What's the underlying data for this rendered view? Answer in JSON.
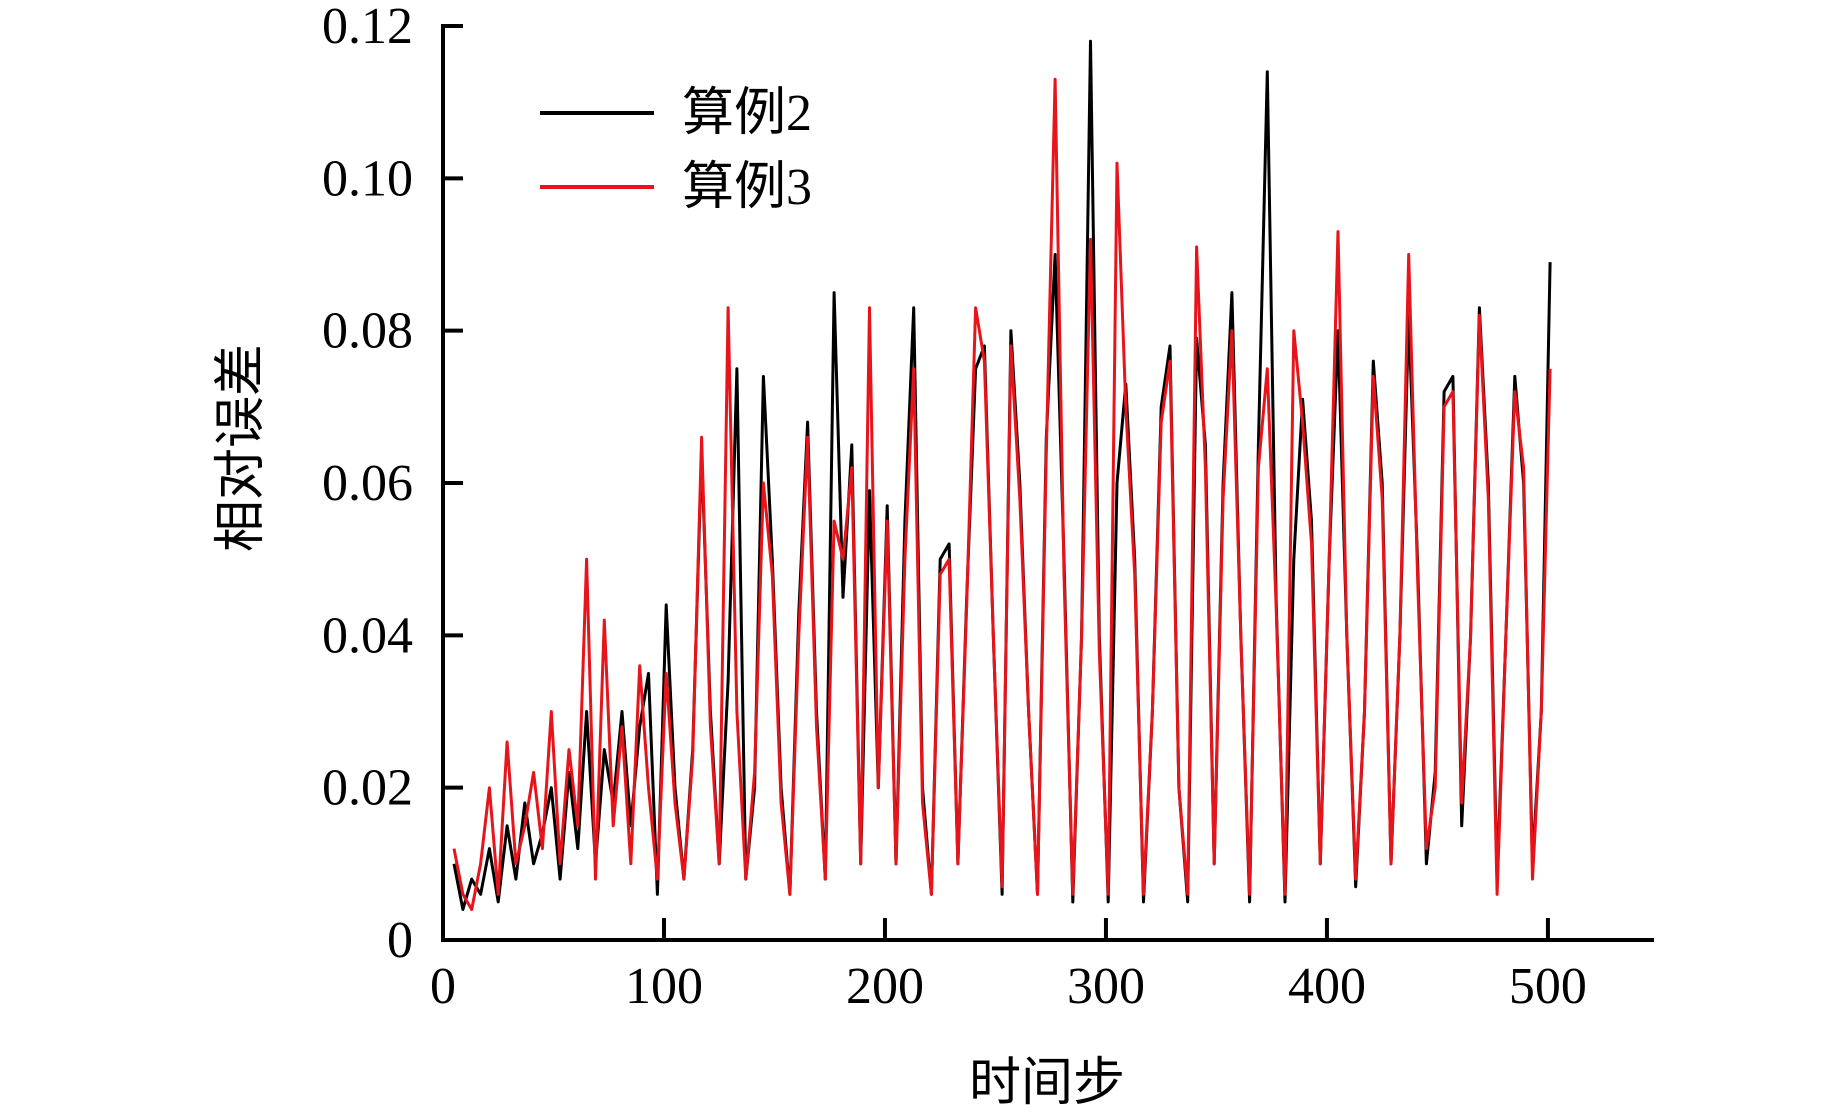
{
  "chart_data": {
    "type": "line",
    "title": "",
    "xlabel": "时间步",
    "ylabel": "相对误差",
    "xlim": [
      0,
      548
    ],
    "ylim": [
      0,
      0.12
    ],
    "xticks": [
      0,
      100,
      200,
      300,
      400,
      500
    ],
    "xtick_labels": [
      "0",
      "100",
      "200",
      "300",
      "400",
      "500"
    ],
    "yticks": [
      0,
      0.02,
      0.04,
      0.06,
      0.08,
      0.1,
      0.12
    ],
    "ytick_labels": [
      "0",
      "0.02",
      "0.04",
      "0.06",
      "0.08",
      "0.10",
      "0.12"
    ],
    "grid": false,
    "legend_position": "top-left",
    "x_start": 5,
    "x_step": 4,
    "series": [
      {
        "name": "算例2",
        "color": "#000000",
        "values": [
          0.01,
          0.004,
          0.008,
          0.006,
          0.012,
          0.005,
          0.015,
          0.008,
          0.018,
          0.01,
          0.014,
          0.02,
          0.008,
          0.022,
          0.012,
          0.03,
          0.01,
          0.025,
          0.018,
          0.03,
          0.015,
          0.028,
          0.035,
          0.006,
          0.044,
          0.02,
          0.008,
          0.025,
          0.064,
          0.03,
          0.01,
          0.034,
          0.075,
          0.008,
          0.02,
          0.074,
          0.05,
          0.02,
          0.006,
          0.043,
          0.068,
          0.03,
          0.008,
          0.085,
          0.045,
          0.065,
          0.01,
          0.059,
          0.02,
          0.057,
          0.01,
          0.055,
          0.083,
          0.02,
          0.006,
          0.05,
          0.052,
          0.01,
          0.045,
          0.075,
          0.078,
          0.04,
          0.006,
          0.08,
          0.06,
          0.03,
          0.006,
          0.066,
          0.09,
          0.05,
          0.005,
          0.04,
          0.118,
          0.04,
          0.005,
          0.06,
          0.073,
          0.05,
          0.005,
          0.03,
          0.07,
          0.078,
          0.02,
          0.005,
          0.079,
          0.065,
          0.01,
          0.06,
          0.085,
          0.04,
          0.005,
          0.065,
          0.114,
          0.045,
          0.005,
          0.05,
          0.071,
          0.055,
          0.01,
          0.05,
          0.08,
          0.04,
          0.007,
          0.03,
          0.076,
          0.06,
          0.01,
          0.04,
          0.082,
          0.05,
          0.01,
          0.022,
          0.072,
          0.074,
          0.015,
          0.04,
          0.083,
          0.06,
          0.008,
          0.04,
          0.074,
          0.06,
          0.01,
          0.03,
          0.089
        ]
      },
      {
        "name": "算例3",
        "color": "#e8141b",
        "values": [
          0.012,
          0.006,
          0.004,
          0.01,
          0.02,
          0.006,
          0.026,
          0.01,
          0.015,
          0.022,
          0.012,
          0.03,
          0.01,
          0.025,
          0.015,
          0.05,
          0.008,
          0.042,
          0.015,
          0.028,
          0.01,
          0.036,
          0.02,
          0.008,
          0.035,
          0.018,
          0.008,
          0.024,
          0.066,
          0.028,
          0.01,
          0.083,
          0.03,
          0.008,
          0.022,
          0.06,
          0.048,
          0.018,
          0.006,
          0.04,
          0.066,
          0.028,
          0.008,
          0.055,
          0.05,
          0.062,
          0.01,
          0.083,
          0.02,
          0.055,
          0.01,
          0.05,
          0.075,
          0.018,
          0.006,
          0.048,
          0.05,
          0.01,
          0.044,
          0.083,
          0.076,
          0.04,
          0.007,
          0.078,
          0.058,
          0.03,
          0.006,
          0.064,
          0.113,
          0.048,
          0.006,
          0.04,
          0.092,
          0.038,
          0.006,
          0.102,
          0.07,
          0.048,
          0.006,
          0.03,
          0.068,
          0.076,
          0.02,
          0.006,
          0.091,
          0.062,
          0.01,
          0.058,
          0.08,
          0.04,
          0.006,
          0.062,
          0.075,
          0.044,
          0.006,
          0.08,
          0.068,
          0.052,
          0.01,
          0.05,
          0.093,
          0.04,
          0.008,
          0.03,
          0.074,
          0.058,
          0.01,
          0.04,
          0.09,
          0.048,
          0.012,
          0.02,
          0.07,
          0.072,
          0.018,
          0.04,
          0.082,
          0.058,
          0.006,
          0.04,
          0.072,
          0.062,
          0.008,
          0.03,
          0.075
        ]
      }
    ]
  }
}
